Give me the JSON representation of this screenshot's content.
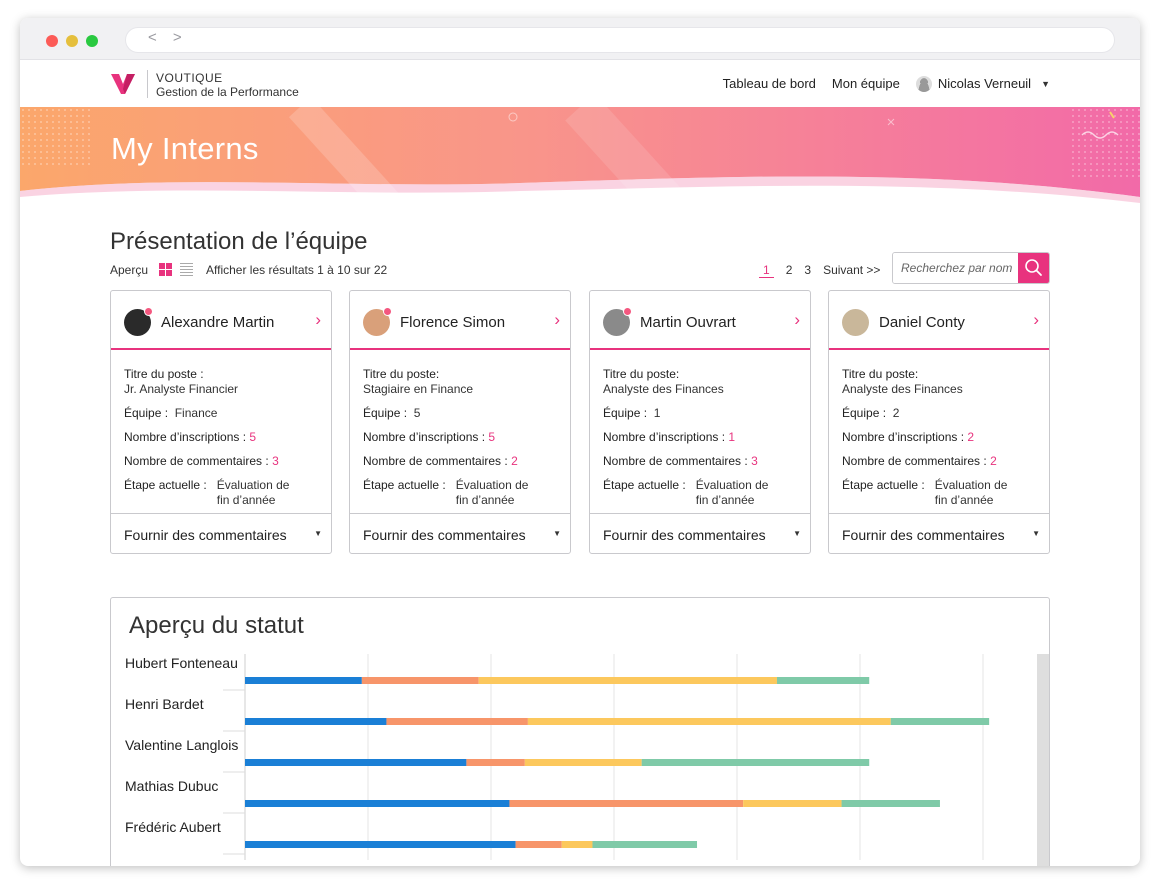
{
  "browser": {
    "nav_arrows": "< >"
  },
  "brand": {
    "name": "VOUTIQUE",
    "subtitle": "Gestion de la Performance",
    "accent": "#e8337e"
  },
  "nav": {
    "links": [
      "Tableau de bord",
      "Mon équipe"
    ],
    "user_name": "Nicolas Verneuil"
  },
  "hero": {
    "title": "My Interns"
  },
  "team": {
    "title": "Présentation de l’équipe",
    "view_label": "Aperçu",
    "results": "Afficher les résultats 1 à 10 sur 22",
    "pages": [
      "1",
      "2",
      "3"
    ],
    "next": "Suivant >>",
    "search_placeholder": "Recherchez par nom"
  },
  "card_labels": {
    "title": "Titre du poste :",
    "team": "Équipe :",
    "inscriptions": "Nombre d’inscriptions :",
    "comments": "Nombre de commentaires :",
    "stage": "Étape actuelle :",
    "footer": "Fournir des commentaires"
  },
  "interns": [
    {
      "name": "Alexandre Martin",
      "title_label": "Titre du poste :",
      "job": "Jr. Analyste Financier",
      "team": "Finance",
      "inscriptions": "5",
      "comments": "3",
      "stage": "Évaluation de fin d’année",
      "avatar_color": "#2a2a2a"
    },
    {
      "name": "Florence Simon",
      "title_label": "Titre du poste:",
      "job": "Stagiaire en Finance",
      "team": "5",
      "inscriptions": "5",
      "comments": "2",
      "stage": "Évaluation de fin d’année",
      "avatar_color": "#d9a07a"
    },
    {
      "name": "Martin Ouvrart",
      "title_label": "Titre du poste:",
      "job": "Analyste des Finances",
      "team": "1",
      "inscriptions": "1",
      "comments": "3",
      "stage": "Évaluation de fin d’année",
      "avatar_color": "#8a8a8a"
    },
    {
      "name": "Daniel Conty",
      "title_label": "Titre du poste:",
      "job": "Analyste des Finances",
      "team": "2",
      "inscriptions": "2",
      "comments": "2",
      "stage": "Évaluation de fin d’année",
      "avatar_color": "#c9b79a"
    }
  ],
  "status": {
    "title": "Aperçu du statut"
  },
  "chart_data": {
    "type": "bar",
    "orientation": "horizontal",
    "stacked": true,
    "categories": [
      "Hubert Fonteneau",
      "Henri Bardet",
      "Valentine Langlois",
      "Mathias Dubuc",
      "Frédéric Aubert"
    ],
    "series": [
      {
        "values": [
          1.9,
          2.3,
          3.6,
          4.3,
          4.4
        ],
        "color": "#1a7fd6"
      },
      {
        "values": [
          1.9,
          2.3,
          0.95,
          3.8,
          0.75
        ],
        "color": "#f7956a"
      },
      {
        "values": [
          4.85,
          5.9,
          1.9,
          1.6,
          0.5
        ],
        "color": "#fcc85d"
      },
      {
        "values": [
          1.5,
          1.6,
          3.7,
          1.6,
          1.7
        ],
        "color": "#7fcaa8"
      }
    ],
    "xlim": [
      0,
      12
    ],
    "x_ticks": [
      0,
      2,
      4,
      6,
      8,
      10,
      12
    ],
    "grid": true
  }
}
